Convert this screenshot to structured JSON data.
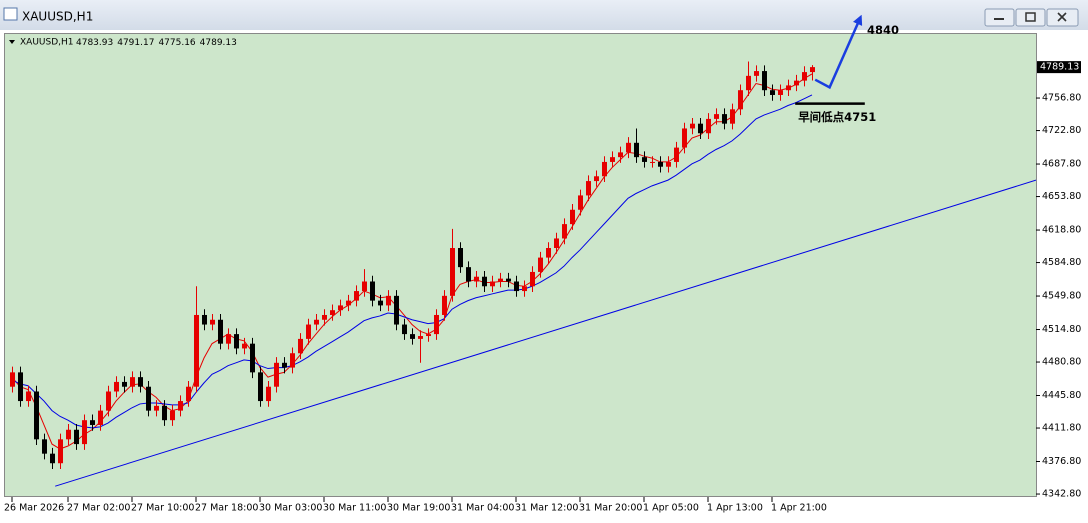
{
  "window_title": "XAUUSD,H1",
  "chart_data": {
    "type": "candlestick",
    "symbol": "XAUUSD,H1",
    "categories": [
      "26 Mar 2026",
      null,
      null,
      null,
      null,
      null,
      null,
      "27 Mar 02:00",
      null,
      null,
      null,
      null,
      null,
      null,
      null,
      "27 Mar 10:00",
      null,
      null,
      null,
      null,
      null,
      null,
      null,
      "27 Mar 18:00",
      null,
      null,
      null,
      null,
      null,
      null,
      null,
      "30 Mar 03:00",
      null,
      null,
      null,
      null,
      null,
      null,
      null,
      "30 Mar 11:00",
      null,
      null,
      null,
      null,
      null,
      null,
      null,
      "30 Mar 19:00",
      null,
      null,
      null,
      null,
      null,
      null,
      null,
      "31 Mar 04:00",
      null,
      null,
      null,
      null,
      null,
      null,
      null,
      "31 Mar 12:00",
      null,
      null,
      null,
      null,
      null,
      null,
      null,
      "31 Mar 20:00",
      null,
      null,
      null,
      null,
      null,
      null,
      null,
      "1 Apr 05:00",
      null,
      null,
      null,
      null,
      null,
      null,
      null,
      "1 Apr 13:00",
      null,
      null,
      null,
      null,
      null,
      null,
      null,
      "1 Apr 21:00",
      null,
      null,
      null,
      null,
      null
    ],
    "open": [
      4455,
      4470,
      4440,
      4450,
      4400,
      4385,
      4375,
      4400,
      4410,
      4395,
      4420,
      4415,
      4430,
      4450,
      4460,
      4455,
      4465,
      4455,
      4430,
      4435,
      4420,
      4430,
      4440,
      4455,
      4530,
      4520,
      4525,
      4500,
      4510,
      4495,
      4500,
      4470,
      4440,
      4455,
      4480,
      4475,
      4490,
      4505,
      4520,
      4525,
      4530,
      4535,
      4540,
      4545,
      4555,
      4565,
      4545,
      4540,
      4550,
      4520,
      4510,
      4505,
      4508,
      4510,
      4530,
      4550,
      4600,
      4580,
      4565,
      4570,
      4560,
      4565,
      4568,
      4565,
      4555,
      4560,
      4575,
      4590,
      4600,
      4610,
      4625,
      4640,
      4655,
      4670,
      4675,
      4690,
      4695,
      4700,
      4710,
      4695,
      4690,
      4690,
      4685,
      4690,
      4705,
      4725,
      4730,
      4720,
      4735,
      4740,
      4730,
      4745,
      4765,
      4780,
      4785,
      4765,
      4760,
      4765,
      4770,
      4775,
      4783.93
    ],
    "high": [
      4476,
      4476,
      4456,
      4456,
      4406,
      4391,
      4406,
      4416,
      4416,
      4426,
      4426,
      4436,
      4456,
      4466,
      4466,
      4471,
      4471,
      4461,
      4441,
      4441,
      4436,
      4446,
      4461,
      4560,
      4536,
      4531,
      4531,
      4516,
      4516,
      4506,
      4506,
      4476,
      4461,
      4486,
      4486,
      4496,
      4511,
      4526,
      4531,
      4536,
      4541,
      4546,
      4551,
      4561,
      4578,
      4571,
      4551,
      4556,
      4556,
      4526,
      4516,
      4514,
      4516,
      4536,
      4556,
      4620,
      4606,
      4586,
      4576,
      4576,
      4571,
      4574,
      4574,
      4571,
      4566,
      4581,
      4596,
      4606,
      4616,
      4631,
      4646,
      4661,
      4676,
      4681,
      4696,
      4701,
      4706,
      4716,
      4725,
      4701,
      4696,
      4696,
      4696,
      4711,
      4731,
      4736,
      4736,
      4741,
      4746,
      4746,
      4751,
      4771,
      4795,
      4791,
      4791,
      4771,
      4771,
      4776,
      4781,
      4790,
      4791.17
    ],
    "low": [
      4449,
      4434,
      4434,
      4394,
      4379,
      4369,
      4369,
      4394,
      4389,
      4389,
      4409,
      4409,
      4424,
      4444,
      4449,
      4449,
      4449,
      4424,
      4424,
      4414,
      4414,
      4424,
      4434,
      4449,
      4514,
      4514,
      4494,
      4494,
      4489,
      4489,
      4464,
      4434,
      4434,
      4449,
      4469,
      4469,
      4484,
      4499,
      4514,
      4519,
      4524,
      4529,
      4534,
      4539,
      4549,
      4539,
      4534,
      4534,
      4514,
      4504,
      4499,
      4480,
      4502,
      4504,
      4524,
      4544,
      4574,
      4559,
      4559,
      4554,
      4554,
      4559,
      4559,
      4549,
      4549,
      4554,
      4569,
      4584,
      4594,
      4604,
      4619,
      4634,
      4649,
      4664,
      4669,
      4684,
      4689,
      4694,
      4689,
      4684,
      4684,
      4679,
      4679,
      4684,
      4699,
      4719,
      4714,
      4714,
      4729,
      4724,
      4724,
      4739,
      4759,
      4774,
      4759,
      4754,
      4754,
      4759,
      4764,
      4769,
      4775.16
    ],
    "close": [
      4470,
      4440,
      4450,
      4400,
      4385,
      4375,
      4400,
      4410,
      4395,
      4420,
      4415,
      4430,
      4450,
      4460,
      4455,
      4465,
      4455,
      4430,
      4435,
      4420,
      4430,
      4440,
      4455,
      4530,
      4520,
      4525,
      4500,
      4510,
      4495,
      4500,
      4470,
      4440,
      4455,
      4480,
      4475,
      4490,
      4505,
      4520,
      4525,
      4530,
      4535,
      4540,
      4545,
      4555,
      4565,
      4545,
      4540,
      4550,
      4520,
      4510,
      4505,
      4508,
      4510,
      4530,
      4550,
      4600,
      4580,
      4565,
      4570,
      4560,
      4565,
      4568,
      4565,
      4555,
      4560,
      4575,
      4590,
      4600,
      4610,
      4625,
      4640,
      4655,
      4670,
      4675,
      4690,
      4695,
      4700,
      4710,
      4695,
      4690,
      4690,
      4685,
      4690,
      4705,
      4725,
      4730,
      4720,
      4735,
      4740,
      4730,
      4745,
      4765,
      4780,
      4785,
      4765,
      4760,
      4765,
      4770,
      4775,
      4783.93,
      4789.13
    ],
    "up_color": "#e60000",
    "down_color": "#000000",
    "series": [
      {
        "color": "#e60000",
        "values": [
          4465,
          4455,
          4452,
          4435,
          4415,
          4395,
          4390,
          4393,
          4398,
          4405,
          4410,
          4418,
          4428,
          4440,
          4449,
          4457,
          4458,
          4450,
          4444,
          4435,
          4430,
          4432,
          4440,
          4465,
          4485,
          4500,
          4505,
          4510,
          4505,
          4503,
          4492,
          4475,
          4465,
          4468,
          4470,
          4478,
          4488,
          4500,
          4510,
          4520,
          4528,
          4535,
          4540,
          4547,
          4555,
          4552,
          4548,
          4549,
          4540,
          4530,
          4520,
          4513,
          4510,
          4515,
          4525,
          4550,
          4562,
          4565,
          4567,
          4564,
          4564,
          4565,
          4565,
          4561,
          4560,
          4565,
          4573,
          4583,
          4595,
          4608,
          4622,
          4636,
          4650,
          4662,
          4674,
          4684,
          4692,
          4700,
          4699,
          4696,
          4694,
          4690,
          4690,
          4695,
          4705,
          4715,
          4718,
          4725,
          4732,
          4732,
          4737,
          4748,
          4760,
          4772,
          4770,
          4766,
          4765,
          4767,
          4771,
          4777,
          4782
        ]
      },
      {
        "color": "#0000e6",
        "values": [
          4462,
          4458,
          4456,
          4448,
          4440,
          4430,
          4424,
          4420,
          4415,
          4413,
          4412,
          4413,
          4417,
          4423,
          4428,
          4433,
          4437,
          4438,
          4438,
          4437,
          4436,
          4436,
          4438,
          4449,
          4459,
          4468,
          4472,
          4477,
          4480,
          4483,
          4482,
          4477,
          4474,
          4475,
          4475,
          4477,
          4481,
          4486,
          4492,
          4497,
          4502,
          4507,
          4512,
          4518,
          4524,
          4527,
          4529,
          4532,
          4531,
          4528,
          4525,
          4523,
          4521,
          4522,
          4526,
          4536,
          4541,
          4545,
          4548,
          4550,
          4552,
          4554,
          4556,
          4556,
          4557,
          4560,
          4564,
          4569,
          4574,
          4581,
          4590,
          4598,
          4607,
          4616,
          4625,
          4634,
          4643,
          4652,
          4657,
          4661,
          4665,
          4668,
          4671,
          4676,
          4682,
          4688,
          4692,
          4698,
          4703,
          4707,
          4712,
          4719,
          4727,
          4735,
          4739,
          4742,
          4745,
          4749,
          4752,
          4756,
          4760
        ]
      }
    ],
    "trendline": {
      "color": "#0000e6",
      "x": [
        5.4,
        128
      ],
      "values": [
        4351,
        4671
      ]
    },
    "support": {
      "label": "早间低点4751",
      "x": [
        97.9,
        106.6
      ],
      "values": [
        4751,
        4751
      ]
    },
    "target": {
      "label": "4840",
      "color": "#1a3ee0",
      "x": [
        100.4,
        102.2,
        106
      ],
      "values": [
        4776,
        4768,
        4840
      ]
    },
    "ylim": [
      4339.7,
      4824.8
    ],
    "yticks": [
      {
        "value": 4756.8,
        "label": "4756.80"
      },
      {
        "value": 4722.8,
        "label": "4722.80"
      },
      {
        "value": 4687.8,
        "label": "4687.80"
      },
      {
        "value": 4653.8,
        "label": "4653.80"
      },
      {
        "value": 4618.8,
        "label": "4618.80"
      },
      {
        "value": 4584.8,
        "label": "4584.80"
      },
      {
        "value": 4549.8,
        "label": "4549.80"
      },
      {
        "value": 4514.8,
        "label": "4514.80"
      },
      {
        "value": 4480.8,
        "label": "4480.80"
      },
      {
        "value": 4445.8,
        "label": "4445.80"
      },
      {
        "value": 4411.8,
        "label": "4411.80"
      },
      {
        "value": 4376.8,
        "label": "4376.80"
      },
      {
        "value": 4342.8,
        "label": "4342.80"
      }
    ],
    "background": "#cde6cb"
  }
}
